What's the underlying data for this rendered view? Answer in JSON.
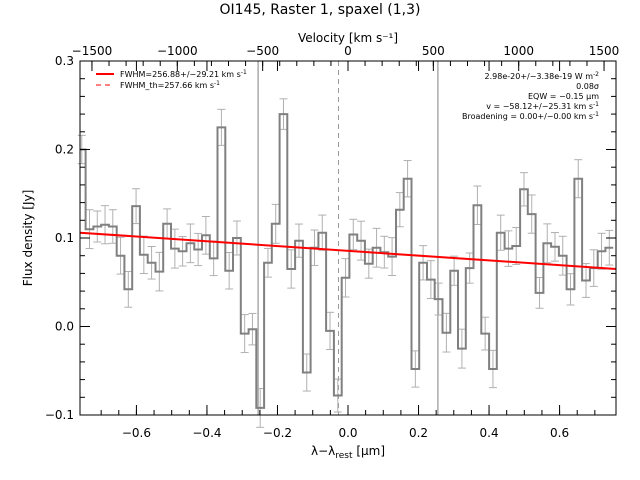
{
  "chart_data": {
    "type": "line",
    "title": "OI145, Raster 1, spaxel (1,3)",
    "xlabel": "λ−λrest [μm]",
    "xlabel_main": "λ−λ",
    "xlabel_sub": "rest",
    "xlabel_unit": " [μm]",
    "top_xlabel": "Velocity [km s⁻¹]",
    "ylabel": "Flux density [Jy]",
    "xlim": [
      -0.76,
      0.76
    ],
    "ylim": [
      -0.1,
      0.3
    ],
    "top_xlim": [
      -1570,
      1570
    ],
    "xticks": [
      -0.6,
      -0.4,
      -0.2,
      0.0,
      0.2,
      0.4,
      0.6
    ],
    "xtick_labels": [
      "−0.6",
      "−0.4",
      "−0.2",
      "0.0",
      "0.2",
      "0.4",
      "0.6"
    ],
    "yticks": [
      -0.1,
      0.0,
      0.1,
      0.2,
      0.3
    ],
    "ytick_labels": [
      "−0.1",
      "0.0",
      "0.1",
      "0.2",
      "0.3"
    ],
    "top_xticks": [
      -1500,
      -1000,
      -500,
      0,
      500,
      1000,
      1500
    ],
    "top_xtick_labels": [
      "−1500",
      "−1000",
      "−500",
      "0",
      "500",
      "1000",
      "1500"
    ],
    "reference_lines_x": [
      -0.255,
      0.255
    ],
    "center_line_x": -0.027,
    "series": [
      {
        "name": "data (steps)",
        "color": "#808080",
        "x": [
          -0.755,
          -0.733,
          -0.711,
          -0.689,
          -0.667,
          -0.645,
          -0.623,
          -0.601,
          -0.579,
          -0.557,
          -0.535,
          -0.513,
          -0.491,
          -0.469,
          -0.447,
          -0.425,
          -0.403,
          -0.381,
          -0.359,
          -0.337,
          -0.315,
          -0.293,
          -0.271,
          -0.249,
          -0.227,
          -0.205,
          -0.183,
          -0.161,
          -0.139,
          -0.117,
          -0.095,
          -0.073,
          -0.051,
          -0.029,
          -0.007,
          0.015,
          0.037,
          0.059,
          0.081,
          0.103,
          0.125,
          0.147,
          0.169,
          0.191,
          0.213,
          0.235,
          0.257,
          0.279,
          0.301,
          0.323,
          0.345,
          0.367,
          0.389,
          0.411,
          0.433,
          0.455,
          0.477,
          0.499,
          0.521,
          0.543,
          0.565,
          0.587,
          0.609,
          0.631,
          0.653,
          0.675,
          0.697,
          0.719,
          0.741
        ],
        "y": [
          0.2,
          0.11,
          0.113,
          0.115,
          0.113,
          0.08,
          0.042,
          0.136,
          0.081,
          0.072,
          0.062,
          0.116,
          0.088,
          0.085,
          0.094,
          0.087,
          0.103,
          0.077,
          0.225,
          0.063,
          0.1,
          -0.008,
          -0.003,
          -0.092,
          0.072,
          0.116,
          0.24,
          0.065,
          0.097,
          -0.052,
          0.089,
          0.106,
          -0.005,
          -0.078,
          0.055,
          0.104,
          0.097,
          0.071,
          0.089,
          0.084,
          0.079,
          0.132,
          0.167,
          -0.048,
          0.072,
          0.053,
          0.031,
          -0.007,
          0.063,
          -0.025,
          0.066,
          0.137,
          -0.008,
          -0.048,
          0.106,
          0.088,
          0.091,
          0.155,
          0.127,
          0.038,
          0.094,
          0.09,
          0.08,
          0.042,
          0.167,
          0.052,
          0.066,
          0.085,
          0.089
        ]
      },
      {
        "name": "FWHM=256.88+/−29.21 km s⁻¹",
        "color": "#ff0000",
        "style": "solid",
        "x": [
          -0.76,
          0.76
        ],
        "y": [
          0.106,
          0.065
        ]
      },
      {
        "name": "FWHM_th=257.66 km s⁻¹",
        "color": "#ff0000",
        "style": "dashed"
      }
    ],
    "legend": [
      {
        "label": "FWHM=256.88+/−29.21 km s",
        "sup": "-1",
        "style": "solid",
        "color": "#ff0000"
      },
      {
        "label": "FWHM_th=257.66 km s",
        "sup": "-1",
        "style": "dashed",
        "color": "#ff0000"
      }
    ],
    "legend_position": "top-left",
    "annotations": [
      {
        "text": "2.98e-20+/−3.38e-19 W m",
        "sup": "-2"
      },
      {
        "text": "0.08σ",
        "sup": ""
      },
      {
        "text": "EQW = −0.15 μm",
        "sup": ""
      },
      {
        "text": "v = −58.12+/−25.31 km s",
        "sup": "-1"
      },
      {
        "text": "Broadening = 0.00+/−0.00 km s",
        "sup": "-1"
      }
    ],
    "annotation_position": "top-right"
  }
}
